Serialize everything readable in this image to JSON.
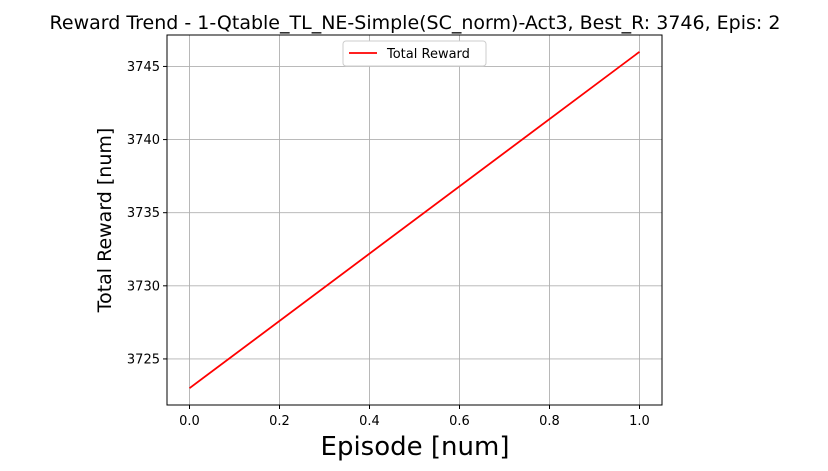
{
  "chart_data": {
    "type": "line",
    "title": "Reward Trend - 1-Qtable_TL_NE-Simple(SC_norm)-Act3, Best_R: 3746, Epis: 2",
    "xlabel": "Episode [num]",
    "ylabel": "Total Reward [num]",
    "xlim": [
      -0.05,
      1.05
    ],
    "ylim": [
      3721.85,
      3747.15
    ],
    "xticks": [
      0.0,
      0.2,
      0.4,
      0.6,
      0.8,
      1.0
    ],
    "xtick_labels": [
      "0.0",
      "0.2",
      "0.4",
      "0.6",
      "0.8",
      "1.0"
    ],
    "yticks": [
      3725,
      3730,
      3735,
      3740,
      3745
    ],
    "ytick_labels": [
      "3725",
      "3730",
      "3735",
      "3740",
      "3745"
    ],
    "grid": true,
    "legend_position": "top-center",
    "series": [
      {
        "name": "Total Reward",
        "color": "#ff0000",
        "x": [
          0,
          1
        ],
        "y": [
          3723,
          3746
        ]
      }
    ]
  }
}
